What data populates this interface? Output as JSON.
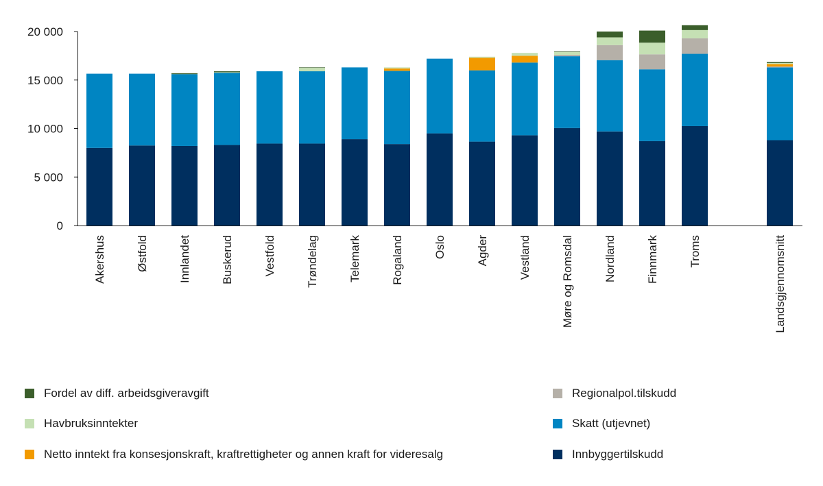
{
  "chart_data": {
    "type": "stacked-bar",
    "title": "",
    "xlabel": "",
    "ylabel": "",
    "ylim": [
      0,
      20000
    ],
    "yticks": [
      0,
      5000,
      10000,
      15000,
      20000
    ],
    "ytick_labels": [
      "0",
      "5 000",
      "10 000",
      "15 000",
      "20 000"
    ],
    "categories": [
      "Akershus",
      "Østfold",
      "Innlandet",
      "Buskerud",
      "Vestfold",
      "Trøndelag",
      "Telemark",
      "Rogaland",
      "Oslo",
      "Agder",
      "Vestland",
      "Møre og Romsdal",
      "Nordland",
      "Finnmark",
      "Troms",
      "",
      "Landsgjennomsnitt"
    ],
    "series": [
      {
        "name": "Innbyggertilskudd",
        "color": "#002F5F",
        "values": [
          8000,
          8250,
          8200,
          8300,
          8450,
          8450,
          8900,
          8400,
          9500,
          8650,
          9300,
          10050,
          9700,
          8700,
          10250,
          null,
          8800
        ]
      },
      {
        "name": "Skatt (utjevnet)",
        "color": "#0085C2",
        "values": [
          7650,
          7400,
          7400,
          7450,
          7450,
          7450,
          7400,
          7550,
          7700,
          7350,
          7500,
          7400,
          7350,
          7400,
          7450,
          null,
          7500
        ]
      },
      {
        "name": "Regionalpol.tilskudd",
        "color": "#B5B0A8",
        "values": [
          0,
          0,
          0,
          0,
          0,
          0,
          0,
          0,
          0,
          0,
          0,
          150,
          1550,
          1550,
          1600,
          null,
          100
        ]
      },
      {
        "name": "Netto inntekt fra konsesjonskraft, kraftrettigheter og annen kraft for videresalg",
        "color": "#F29A00",
        "values": [
          0,
          0,
          0,
          0,
          0,
          0,
          0,
          250,
          0,
          1300,
          700,
          0,
          0,
          0,
          0,
          null,
          250
        ]
      },
      {
        "name": "Havbruksinntekter",
        "color": "#C5E0B4",
        "values": [
          0,
          0,
          0,
          50,
          0,
          350,
          0,
          100,
          0,
          100,
          300,
          300,
          800,
          1200,
          850,
          null,
          100
        ]
      },
      {
        "name": "Fordel av diff. arbeidsgiveravgift",
        "color": "#3B5E2B",
        "values": [
          0,
          0,
          100,
          100,
          0,
          50,
          0,
          0,
          0,
          0,
          0,
          50,
          600,
          1250,
          500,
          null,
          100
        ]
      }
    ],
    "legend_order": [
      5,
      2,
      4,
      1,
      3,
      0
    ]
  }
}
